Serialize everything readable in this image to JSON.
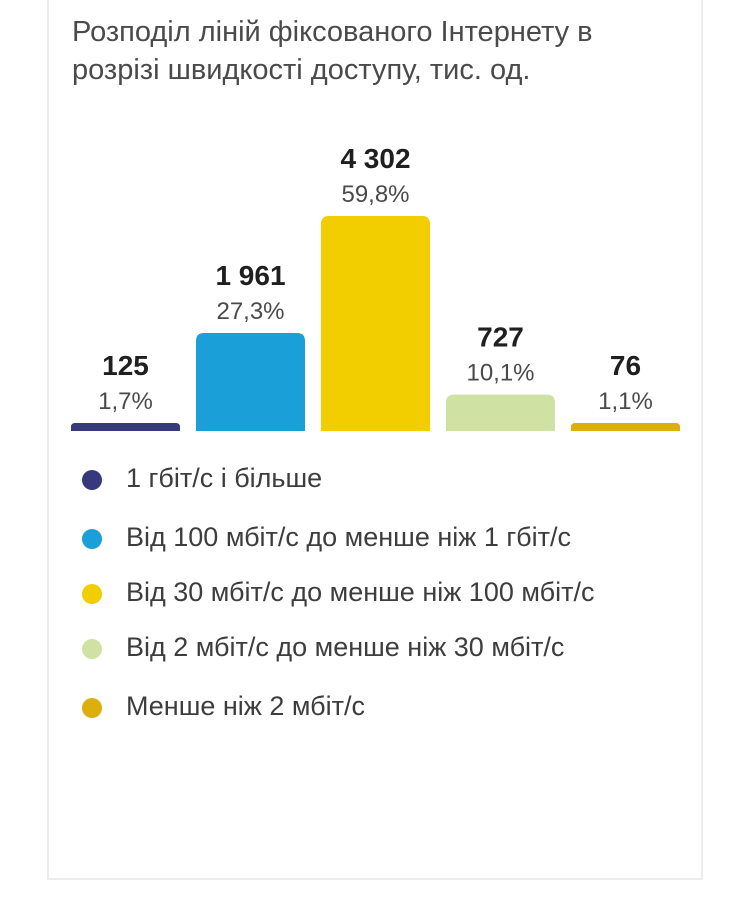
{
  "chart_data": {
    "type": "bar",
    "title": "Розподіл ліній фіксованого Інтернету в розрізі швидкості доступу, тис. од.",
    "categories": [
      "1 гбіт/с і більше",
      "Від 100 мбіт/с до менше ніж 1 гбіт/с",
      "Від 30 мбіт/с до менше ніж 100 мбіт/с",
      "Від 2 мбіт/с до менше ніж 30 мбіт/с",
      "Менше ніж 2 мбіт/с"
    ],
    "values": [
      125,
      1961,
      4302,
      727,
      76
    ],
    "value_labels": [
      "125",
      "1 961",
      "4 302",
      "727",
      "76"
    ],
    "percent_labels": [
      "1,7%",
      "27,3%",
      "59,8%",
      "10,1%",
      "1,1%"
    ],
    "colors": [
      "#363a7c",
      "#1a9fd9",
      "#f2cd00",
      "#cfe1a3",
      "#dcae0e"
    ],
    "ylim": [
      0,
      4302
    ],
    "grid": false,
    "legend_position": "bottom"
  }
}
